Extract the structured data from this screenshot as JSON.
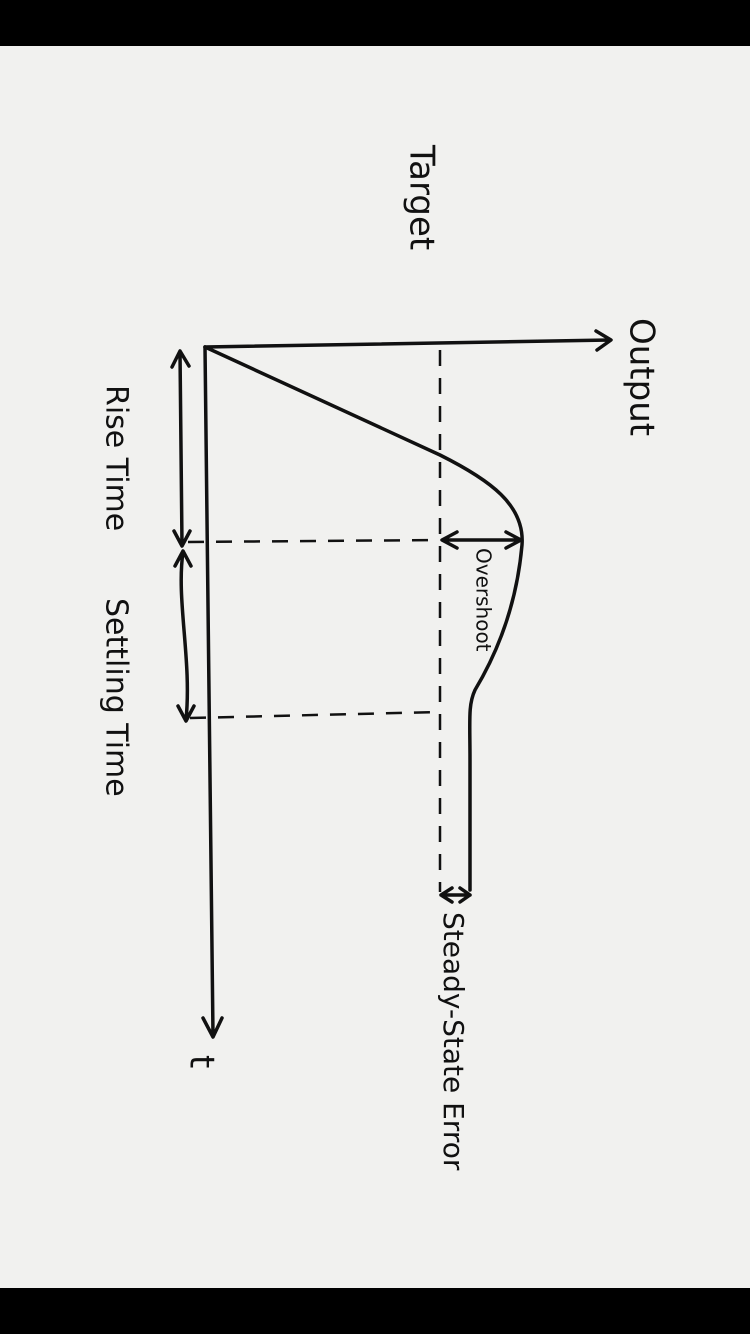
{
  "labels": {
    "target": "Target",
    "output": "Output",
    "time": "t",
    "rise_time": "Rise Time",
    "settling_time": "Settling Time",
    "overshoot": "Overshoot",
    "steady_state_error": "Steady-State Error"
  }
}
